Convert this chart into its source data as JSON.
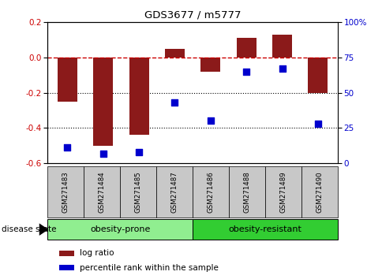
{
  "title": "GDS3677 / m5777",
  "samples": [
    "GSM271483",
    "GSM271484",
    "GSM271485",
    "GSM271487",
    "GSM271486",
    "GSM271488",
    "GSM271489",
    "GSM271490"
  ],
  "log_ratio": [
    -0.25,
    -0.5,
    -0.44,
    0.05,
    -0.08,
    0.11,
    0.13,
    -0.2
  ],
  "percentile_rank": [
    11,
    7,
    8,
    43,
    30,
    65,
    67,
    28
  ],
  "bar_color": "#8B1A1A",
  "dot_color": "#0000CD",
  "dashed_color": "#CC0000",
  "ylim_left": [
    -0.6,
    0.2
  ],
  "ylim_right": [
    0,
    100
  ],
  "yticks_left": [
    -0.6,
    -0.4,
    -0.2,
    0.0,
    0.2
  ],
  "yticks_right": [
    0,
    25,
    50,
    75,
    100
  ],
  "groups": [
    {
      "label": "obesity-prone",
      "indices": [
        0,
        3
      ],
      "color": "#90EE90"
    },
    {
      "label": "obesity-resistant",
      "indices": [
        4,
        7
      ],
      "color": "#32CD32"
    }
  ],
  "disease_state_label": "disease state",
  "legend_bar_label": "log ratio",
  "legend_dot_label": "percentile rank within the sample",
  "bg_color": "#FFFFFF",
  "plot_bg": "#FFFFFF",
  "sample_box_color": "#C8C8C8",
  "dotted_line_color": "#000000"
}
